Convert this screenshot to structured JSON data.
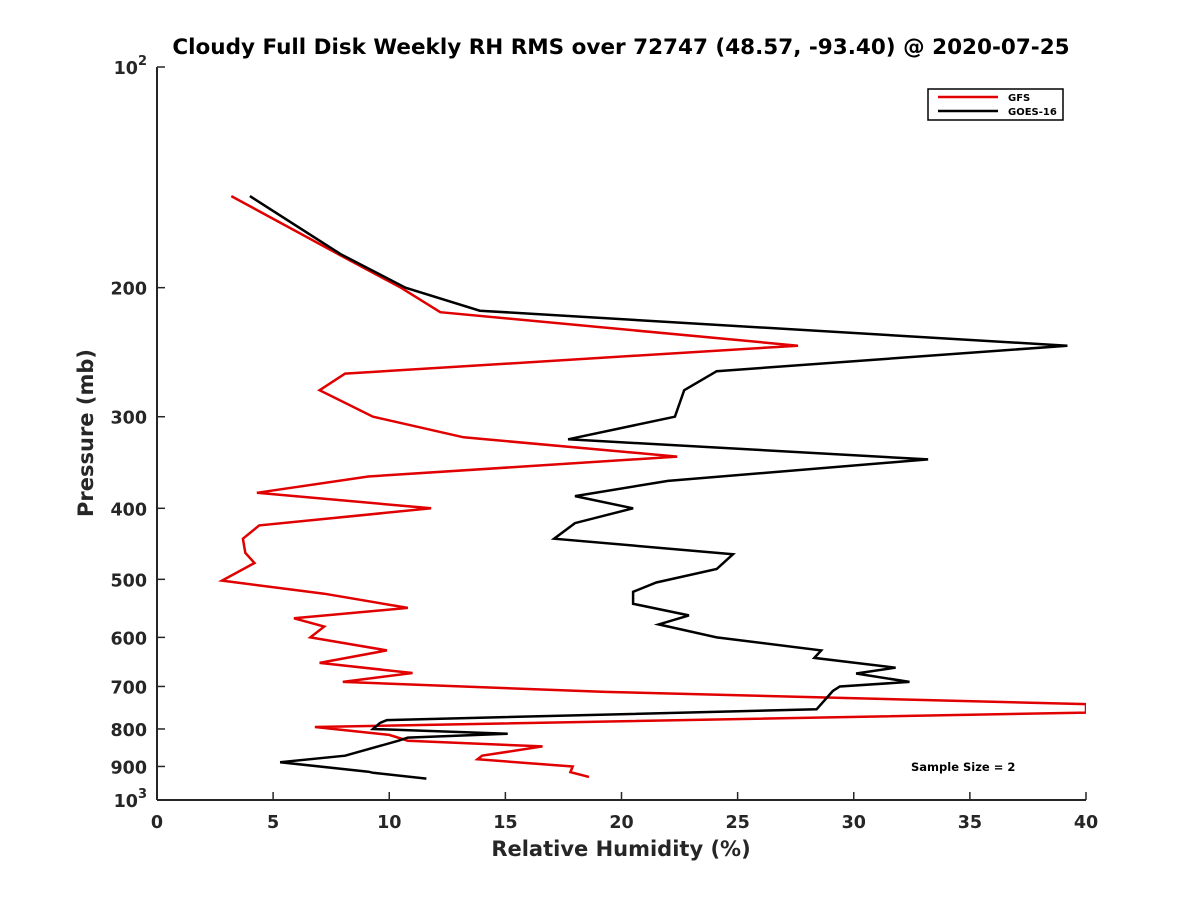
{
  "chart_data": {
    "type": "line",
    "title": "Cloudy Full Disk Weekly RH RMS over 72747 (48.57, -93.40) @ 2020-07-25",
    "xlabel": "Relative Humidity (%)",
    "ylabel": "Pressure (mb)",
    "xlim": [
      0,
      40
    ],
    "ylim": [
      100,
      1000
    ],
    "yscale": "log",
    "y_reversed": true,
    "x_ticks": [
      0,
      5,
      10,
      15,
      20,
      25,
      30,
      35,
      40
    ],
    "x_tick_labels": [
      "0",
      "5",
      "10",
      "15",
      "20",
      "25",
      "30",
      "35",
      "40"
    ],
    "y_ticks": [
      100,
      200,
      300,
      400,
      500,
      600,
      700,
      800,
      900,
      1000
    ],
    "y_tick_labels": [
      {
        "base": "10",
        "exp": "2"
      },
      {
        "base": "200",
        "exp": ""
      },
      {
        "base": "300",
        "exp": ""
      },
      {
        "base": "400",
        "exp": ""
      },
      {
        "base": "500",
        "exp": ""
      },
      {
        "base": "600",
        "exp": ""
      },
      {
        "base": "700",
        "exp": ""
      },
      {
        "base": "800",
        "exp": ""
      },
      {
        "base": "900",
        "exp": ""
      },
      {
        "base": "10",
        "exp": "3"
      }
    ],
    "legend_position": "top-right",
    "annotation": "Sample Size = 2",
    "series": [
      {
        "name": "GFS",
        "color": "#e00000",
        "points": [
          [
            3.2,
            150
          ],
          [
            7.8,
            180
          ],
          [
            10.5,
            200
          ],
          [
            12.2,
            216
          ],
          [
            27.6,
            240
          ],
          [
            8.1,
            262
          ],
          [
            7.0,
            276
          ],
          [
            9.3,
            300
          ],
          [
            13.2,
            320
          ],
          [
            22.4,
            340
          ],
          [
            9.1,
            362
          ],
          [
            4.3,
            381
          ],
          [
            11.8,
            400
          ],
          [
            4.4,
            422
          ],
          [
            3.7,
            440
          ],
          [
            3.8,
            460
          ],
          [
            4.2,
            475
          ],
          [
            2.8,
            502
          ],
          [
            7.2,
            523
          ],
          [
            10.8,
            547
          ],
          [
            5.9,
            565
          ],
          [
            7.2,
            580
          ],
          [
            6.6,
            600
          ],
          [
            9.9,
            625
          ],
          [
            7.0,
            650
          ],
          [
            11.0,
            671
          ],
          [
            8.0,
            690
          ],
          [
            19.3,
            712
          ],
          [
            40.0,
            740
          ],
          [
            40.0,
            760
          ],
          [
            6.8,
            795
          ],
          [
            10.0,
            815
          ],
          [
            10.8,
            830
          ],
          [
            16.6,
            845
          ],
          [
            14.0,
            870
          ],
          [
            13.8,
            880
          ],
          [
            17.9,
            900
          ],
          [
            17.8,
            916
          ],
          [
            18.6,
            930
          ]
        ]
      },
      {
        "name": "GOES-16",
        "color": "#000000",
        "points": [
          [
            4.0,
            150
          ],
          [
            7.9,
            180
          ],
          [
            10.7,
            200
          ],
          [
            13.9,
            215
          ],
          [
            39.2,
            240
          ],
          [
            24.1,
            260
          ],
          [
            22.7,
            276
          ],
          [
            22.3,
            300
          ],
          [
            17.7,
            322
          ],
          [
            33.2,
            343
          ],
          [
            22.0,
            367
          ],
          [
            18.0,
            385
          ],
          [
            20.5,
            400
          ],
          [
            18.0,
            419
          ],
          [
            17.1,
            440
          ],
          [
            24.8,
            462
          ],
          [
            24.1,
            484
          ],
          [
            21.5,
            505
          ],
          [
            20.5,
            520
          ],
          [
            20.5,
            540
          ],
          [
            22.9,
            560
          ],
          [
            21.6,
            576
          ],
          [
            24.1,
            600
          ],
          [
            28.6,
            625
          ],
          [
            28.3,
            640
          ],
          [
            31.8,
            660
          ],
          [
            30.1,
            672
          ],
          [
            32.4,
            690
          ],
          [
            29.4,
            700
          ],
          [
            29.1,
            710
          ],
          [
            28.4,
            752
          ],
          [
            9.9,
            778
          ],
          [
            9.6,
            785
          ],
          [
            9.3,
            800
          ],
          [
            15.1,
            812
          ],
          [
            10.8,
            822
          ],
          [
            10.4,
            830
          ],
          [
            8.1,
            870
          ],
          [
            5.3,
            888
          ],
          [
            9.1,
            915
          ],
          [
            9.3,
            918
          ],
          [
            11.6,
            935
          ]
        ]
      }
    ]
  }
}
